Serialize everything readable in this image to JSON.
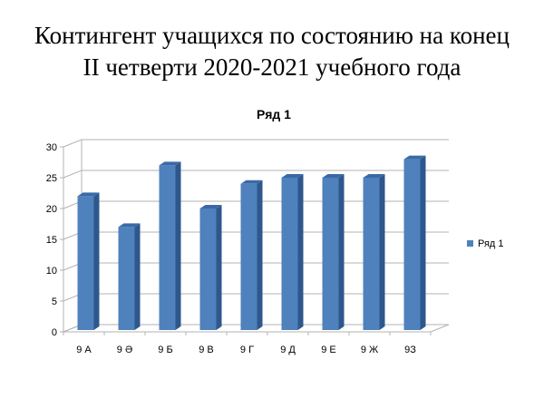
{
  "slide": {
    "title_line1": "Контингент учащихся по состоянию  на конец",
    "title_line2": "II четверти 2020-2021 учебного  года"
  },
  "colors": {
    "bar_front": "#4f81bd",
    "bar_side": "#2e578c",
    "bar_top": "#3a6aa6",
    "grid": "#b3b3b3"
  },
  "chart_data": {
    "type": "bar",
    "title": "Ряд 1",
    "categories": [
      "9 А",
      "9 Ә",
      "9 Б",
      "9 В",
      "9 Г",
      "9 Д",
      "9 Е",
      "9 Ж",
      "9З"
    ],
    "series": [
      {
        "name": "Ряд 1",
        "values": [
          22,
          17,
          27,
          20,
          24,
          25,
          25,
          25,
          28
        ]
      }
    ],
    "ylim": [
      0,
      30
    ],
    "yticks": [
      0,
      5,
      10,
      15,
      20,
      25,
      30
    ],
    "grid": true,
    "legend_position": "right"
  }
}
